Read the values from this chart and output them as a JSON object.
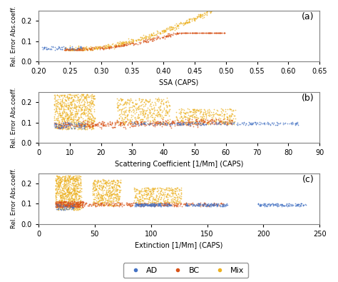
{
  "color_AD": "#4472C4",
  "color_BC": "#D95319",
  "color_Mix": "#EDB120",
  "panel_labels": [
    "(a)",
    "(b)",
    "(c)"
  ],
  "ylabel": "Rel. Error Abs.coeff.",
  "subplot_a": {
    "xlabel": "SSA (CAPS)",
    "xlim": [
      0.2,
      0.65
    ],
    "ylim": [
      0.0,
      0.25
    ],
    "yticks": [
      0.0,
      0.1,
      0.2
    ],
    "xticks": [
      0.2,
      0.25,
      0.3,
      0.35,
      0.4,
      0.45,
      0.5,
      0.55,
      0.6,
      0.65
    ]
  },
  "subplot_b": {
    "xlabel": "Scattering Coefficient [1/Mm] (CAPS)",
    "xlim": [
      0,
      90
    ],
    "ylim": [
      0.0,
      0.25
    ],
    "yticks": [
      0.0,
      0.1,
      0.2
    ],
    "xticks": [
      0,
      10,
      20,
      30,
      40,
      50,
      60,
      70,
      80,
      90
    ]
  },
  "subplot_c": {
    "xlabel": "Extinction [1/Mm] (CAPS)",
    "xlim": [
      0,
      250
    ],
    "ylim": [
      0.0,
      0.25
    ],
    "yticks": [
      0.0,
      0.1,
      0.2
    ],
    "xticks": [
      0,
      50,
      100,
      150,
      200,
      250
    ]
  }
}
